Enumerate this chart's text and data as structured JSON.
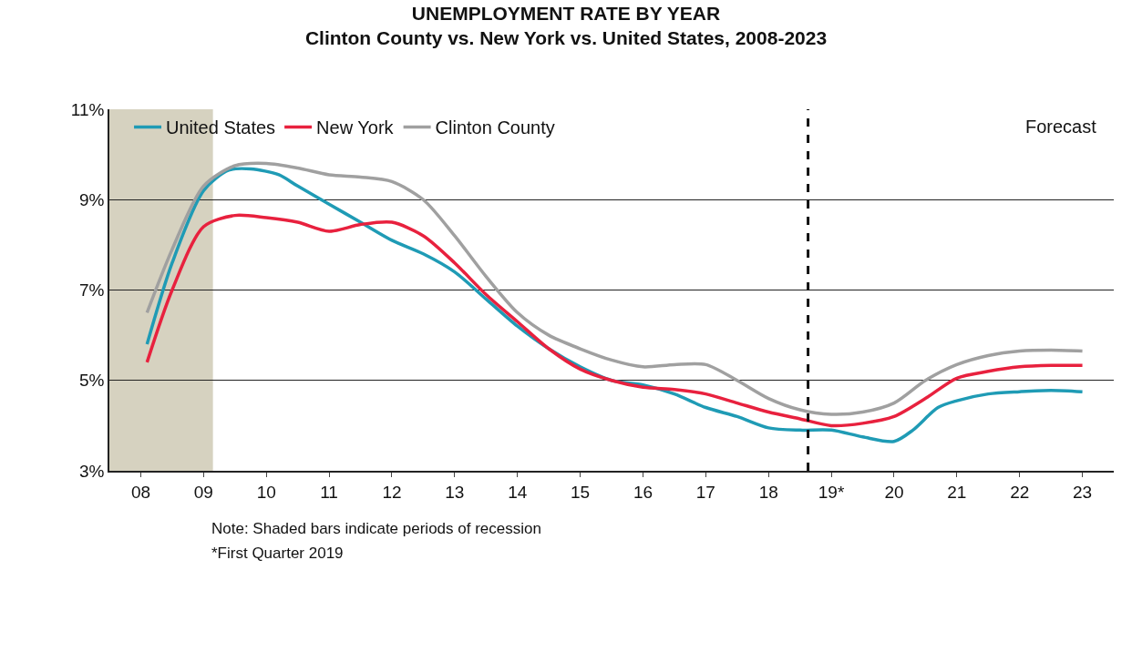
{
  "chart_data": {
    "type": "line",
    "title": "UNEMPLOYMENT RATE BY YEAR",
    "subtitle": "Clinton County vs. New York vs. United States, 2008-2023",
    "xlim": [
      7.5,
      23.5
    ],
    "xticks": [
      {
        "value": 8,
        "label": "08"
      },
      {
        "value": 9,
        "label": "09"
      },
      10,
      11,
      12,
      13,
      14,
      15,
      16,
      17,
      18,
      {
        "value": 19,
        "label": "19*"
      },
      20,
      21,
      22,
      23
    ],
    "ylim": [
      3,
      11
    ],
    "yticks": [
      {
        "value": 3,
        "label": "3%"
      },
      {
        "value": 5,
        "label": "5%"
      },
      {
        "value": 7,
        "label": "7%"
      },
      {
        "value": 9,
        "label": "9%"
      },
      {
        "value": 11,
        "label": "11%"
      }
    ],
    "grid": "y",
    "legend": "top left",
    "marker": "none",
    "line_style": "solid",
    "series": [
      {
        "name": "United States",
        "color": "#1f9bb5",
        "x": [
          8.1,
          8.5,
          9,
          9.4,
          9.75,
          10.2,
          10.5,
          11,
          11.5,
          12,
          12.5,
          13,
          13.5,
          14,
          14.5,
          15,
          15.5,
          16,
          16.5,
          17,
          17.5,
          18,
          18.5,
          19,
          19.5,
          20,
          20.3,
          20.7,
          21,
          21.5,
          22,
          22.5,
          23
        ],
        "values": [
          5.8,
          7.6,
          9.2,
          9.65,
          9.68,
          9.55,
          9.3,
          8.9,
          8.5,
          8.1,
          7.8,
          7.4,
          6.8,
          6.2,
          5.7,
          5.3,
          5.0,
          4.9,
          4.7,
          4.4,
          4.2,
          3.95,
          3.9,
          3.9,
          3.75,
          3.65,
          3.9,
          4.4,
          4.55,
          4.7,
          4.75,
          4.78,
          4.75
        ]
      },
      {
        "name": "New York",
        "color": "#e8213e",
        "x": [
          8.1,
          8.5,
          9,
          9.5,
          10,
          10.5,
          11,
          11.5,
          12,
          12.5,
          13,
          13.5,
          14,
          14.5,
          15,
          15.5,
          16,
          16.5,
          17,
          17.5,
          18,
          18.5,
          19,
          19.5,
          20,
          20.5,
          21,
          21.5,
          22,
          22.5,
          23
        ],
        "values": [
          5.4,
          7.0,
          8.4,
          8.65,
          8.6,
          8.5,
          8.3,
          8.45,
          8.5,
          8.2,
          7.6,
          6.9,
          6.3,
          5.7,
          5.25,
          5.0,
          4.85,
          4.8,
          4.7,
          4.5,
          4.3,
          4.15,
          4.0,
          4.05,
          4.2,
          4.6,
          5.05,
          5.2,
          5.3,
          5.33,
          5.33
        ]
      },
      {
        "name": "Clinton County",
        "color": "#a0a0a0",
        "x": [
          8.1,
          8.5,
          9,
          9.5,
          10,
          10.5,
          11,
          11.5,
          12,
          12.5,
          13,
          13.5,
          14,
          14.5,
          15,
          15.5,
          16,
          16.5,
          17,
          17.5,
          18,
          18.5,
          19,
          19.5,
          20,
          20.5,
          21,
          21.5,
          22,
          22.5,
          23
        ],
        "values": [
          6.5,
          7.9,
          9.3,
          9.75,
          9.8,
          9.7,
          9.55,
          9.5,
          9.4,
          9.0,
          8.2,
          7.3,
          6.5,
          6.0,
          5.7,
          5.45,
          5.3,
          5.35,
          5.35,
          5.0,
          4.6,
          4.35,
          4.25,
          4.3,
          4.5,
          5.0,
          5.35,
          5.55,
          5.65,
          5.67,
          5.65
        ]
      }
    ],
    "ref_lines": [
      {
        "axis": "x",
        "value": 18.63,
        "color": "#111111",
        "line_style": "dashed"
      }
    ],
    "bands": [
      {
        "axis": "x",
        "from": 7.5,
        "to": 9.15,
        "color": "#d6d2c0"
      }
    ],
    "annotations": [
      "Forecast",
      "Note: Shaded bars indicate periods of recession",
      "*First Quarter 2019"
    ]
  }
}
